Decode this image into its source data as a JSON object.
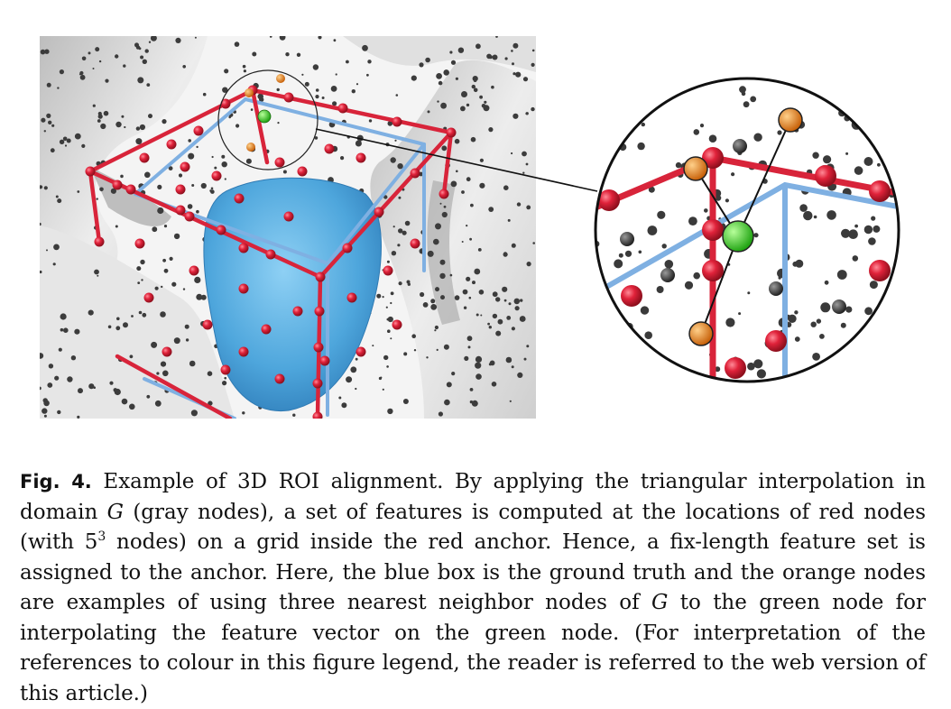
{
  "figure": {
    "icons": [
      "3d-render-panel",
      "zoom-inset-circle"
    ],
    "colors": {
      "red_anchor": "#d8243a",
      "blue_box": "#79a9de",
      "roi_volume": "#52a8dc",
      "gray_node": "#3a3a3a",
      "orange_node": "#e8871d",
      "green_node": "#3fd12c",
      "surface": "#dcdcdc"
    }
  },
  "caption": {
    "label": "Fig. 4.",
    "part1": " Example of 3D ROI alignment. By applying the triangular interpolation in domain ",
    "g1": "G",
    "part2": " (gray nodes), a set of features is computed at the locations of red nodes (with 5",
    "sup": "3",
    "part3": " nodes) on a grid inside the red anchor. Hence, a fix-length feature set is assigned to the anchor. Here, the blue box is the ground truth and the orange nodes are examples of using three nearest neighbor nodes of ",
    "g2": "G",
    "part4": " to the green node for interpolating the feature vector on the green node. (For interpretation of the references to colour in this figure legend, the reader is referred to the web version of this article.)"
  }
}
